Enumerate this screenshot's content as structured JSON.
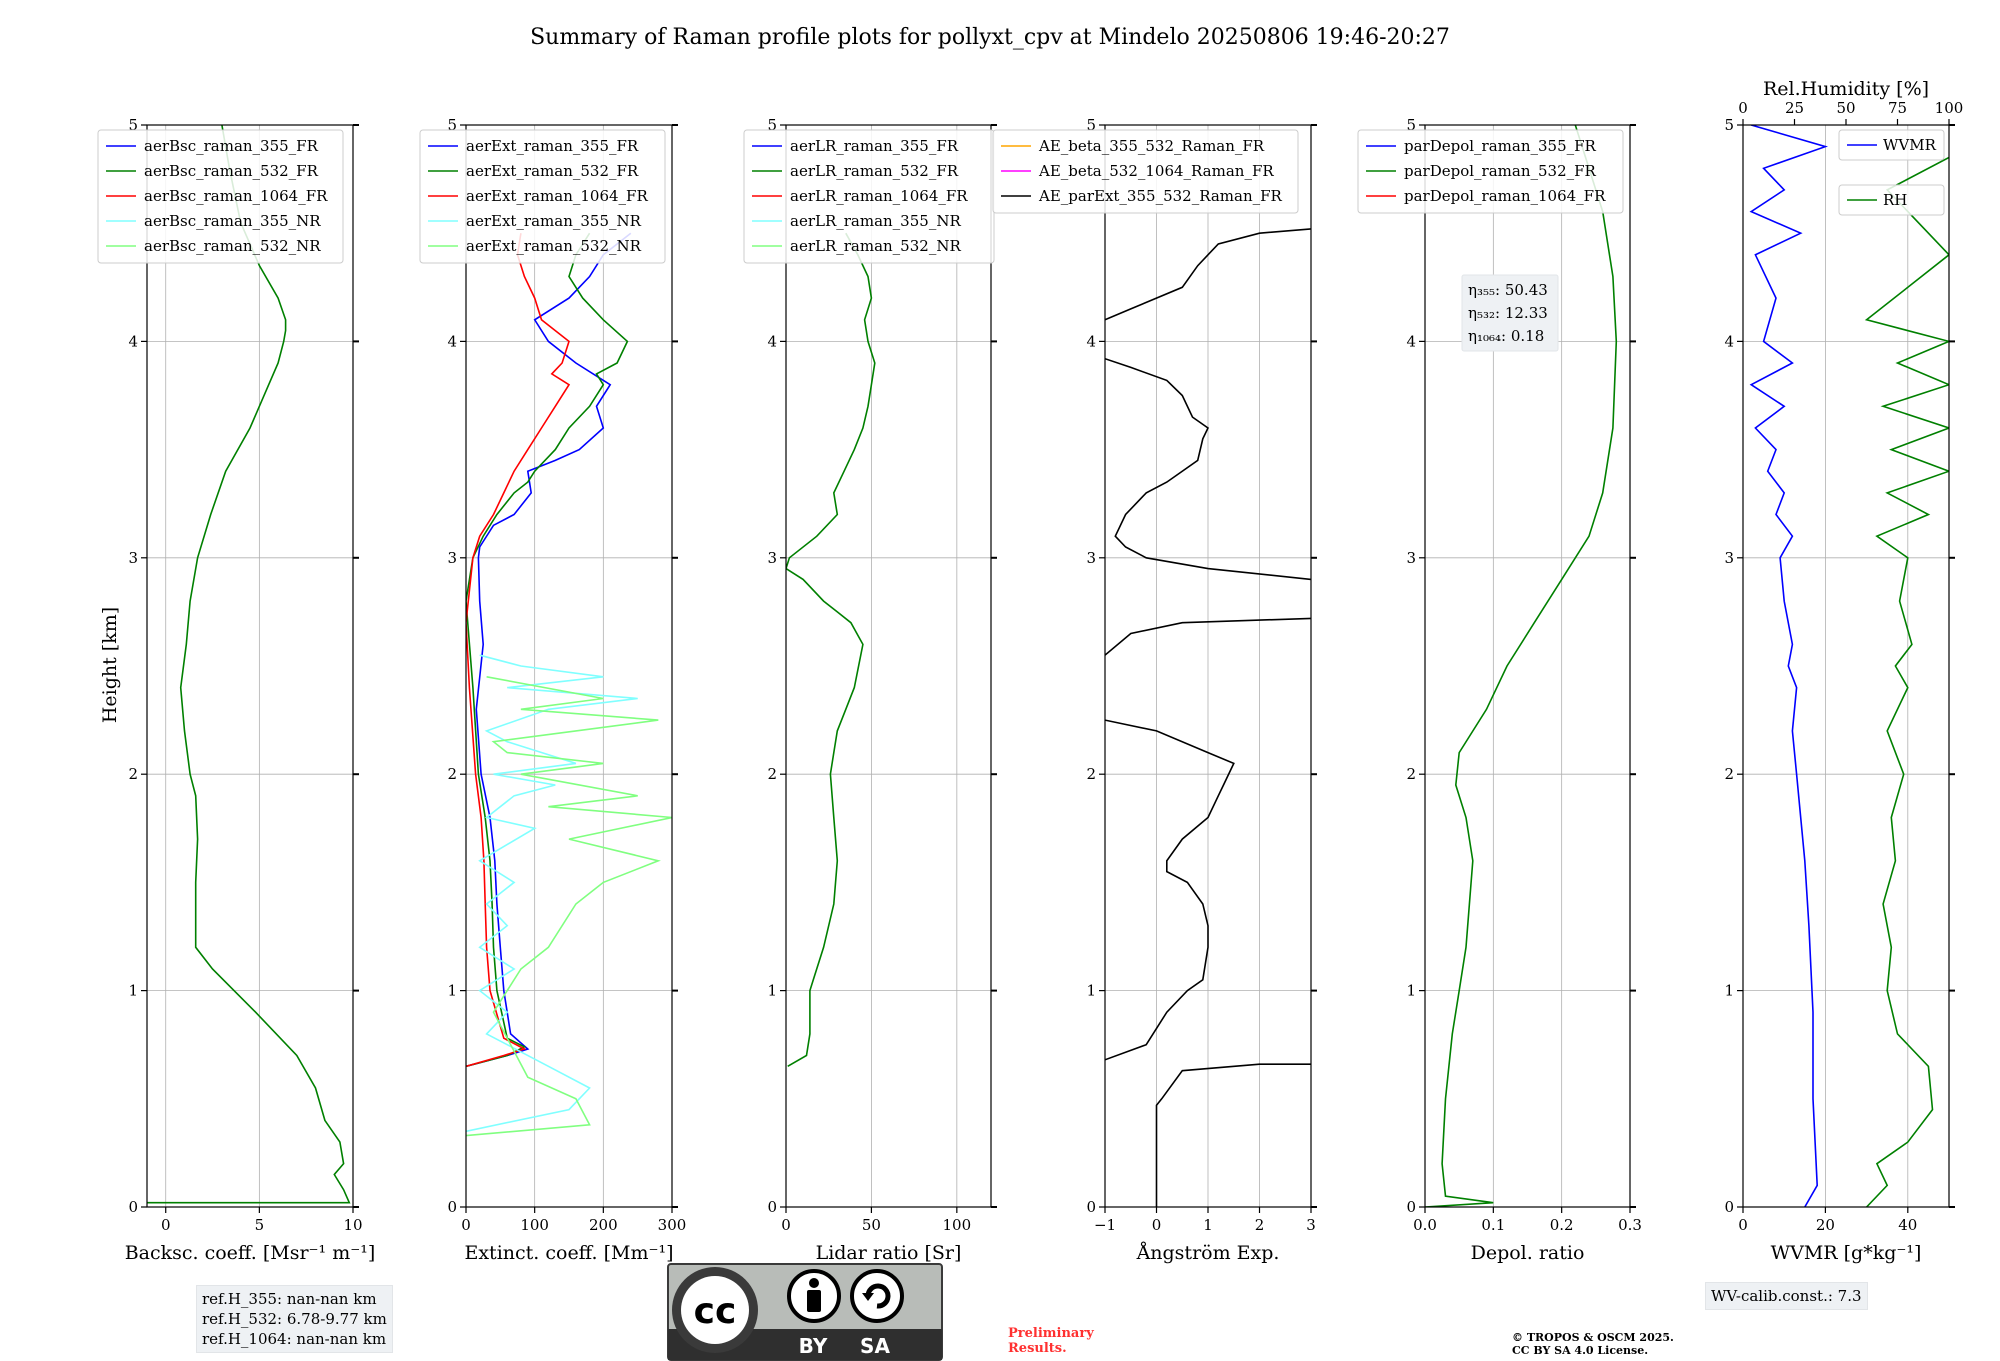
{
  "figure": {
    "title": "Summary of Raman profile plots for pollyxt_cpv at Mindelo 20250806 19:46-20:27",
    "ylabel": "Height [km]",
    "refbox": [
      "ref.H_355: nan-nan km",
      "ref.H_532: 6.78-9.77 km",
      "ref.H_1064: nan-nan km"
    ],
    "wv_calib": "WV-calib.const.: 7.3",
    "preliminary": [
      "Preliminary",
      "Results."
    ],
    "copyright": [
      "© TROPOS & OSCM 2025.",
      "CC BY SA 4.0 License."
    ],
    "license": {
      "by": "BY",
      "sa": "SA",
      "cc": "cc"
    },
    "colors": {
      "blue": "#0000ff",
      "green": "#008000",
      "red": "#ff0000",
      "cyan": "#80ffff",
      "lightgreen": "#80ff80",
      "orange": "#ffa500",
      "magenta": "#ff00ff",
      "black": "#000000",
      "grid": "#b0b0b0",
      "preliminary": "#ff3030"
    }
  },
  "chart_data": [
    {
      "type": "line",
      "xlabel": "Backsc. coeff. [Msr⁻¹ m⁻¹]",
      "xlim": [
        -1,
        10
      ],
      "xticks": [
        0,
        5,
        10
      ],
      "ylim": [
        0,
        5
      ],
      "yticks": [
        0,
        1,
        2,
        3,
        4,
        5
      ],
      "grid": true,
      "legend_location": "upper-left",
      "series": [
        {
          "name": "aerBsc_raman_355_FR",
          "color": "#0000ff",
          "x": [],
          "y": []
        },
        {
          "name": "aerBsc_raman_532_FR",
          "color": "#008000",
          "x": [
            -1,
            9.8,
            9.5,
            9.0,
            9.5,
            9.3,
            8.5,
            8.0,
            7.0,
            4.8,
            2.5,
            1.6,
            1.6,
            1.7,
            1.6,
            1.3,
            1.0,
            0.8,
            1.1,
            1.3,
            1.7,
            2.4,
            3.2,
            4.5,
            5.5,
            6.0,
            6.3,
            6.4,
            6.4,
            6.0,
            5.0,
            4.0,
            3.4,
            3.0
          ],
          "y": [
            0.02,
            0.02,
            0.08,
            0.15,
            0.2,
            0.3,
            0.4,
            0.55,
            0.7,
            0.9,
            1.1,
            1.2,
            1.5,
            1.7,
            1.9,
            2.0,
            2.2,
            2.4,
            2.6,
            2.8,
            3.0,
            3.2,
            3.4,
            3.6,
            3.8,
            3.9,
            4.0,
            4.05,
            4.1,
            4.2,
            4.35,
            4.55,
            4.8,
            5.0
          ]
        },
        {
          "name": "aerBsc_raman_1064_FR",
          "color": "#ff0000",
          "x": [],
          "y": []
        },
        {
          "name": "aerBsc_raman_355_NR",
          "color": "#80ffff",
          "x": [],
          "y": []
        },
        {
          "name": "aerBsc_raman_532_NR",
          "color": "#80ff80",
          "x": [],
          "y": []
        }
      ]
    },
    {
      "type": "line",
      "xlabel": "Extinct. coeff. [Mm⁻¹]",
      "xlim": [
        0,
        300
      ],
      "xticks": [
        0,
        100,
        200,
        300
      ],
      "ylim": [
        0,
        5
      ],
      "yticks": [
        0,
        1,
        2,
        3,
        4,
        5
      ],
      "grid": true,
      "legend_location": "upper-left",
      "series": [
        {
          "name": "aerExt_raman_355_FR",
          "color": "#0000ff",
          "x": [
            0,
            60,
            90,
            65,
            55,
            50,
            45,
            42,
            35,
            22,
            15,
            25,
            20,
            18,
            20,
            40,
            70,
            95,
            90,
            130,
            165,
            200,
            190,
            210,
            160,
            120,
            100,
            150,
            180,
            200,
            240
          ],
          "y": [
            0.65,
            0.7,
            0.73,
            0.8,
            1.0,
            1.2,
            1.4,
            1.6,
            1.8,
            2.0,
            2.3,
            2.6,
            2.8,
            3.0,
            3.05,
            3.15,
            3.2,
            3.3,
            3.4,
            3.45,
            3.5,
            3.6,
            3.7,
            3.8,
            3.9,
            4.0,
            4.1,
            4.2,
            4.3,
            4.4,
            4.5
          ]
        },
        {
          "name": "aerExt_raman_532_FR",
          "color": "#008000",
          "x": [
            0,
            60,
            85,
            60,
            45,
            40,
            38,
            35,
            28,
            18,
            10,
            0,
            10,
            25,
            45,
            70,
            90,
            100,
            130,
            150,
            180,
            200,
            190,
            220,
            235,
            200,
            170,
            150,
            160,
            180
          ],
          "y": [
            0.65,
            0.7,
            0.74,
            0.78,
            1.0,
            1.2,
            1.4,
            1.6,
            1.8,
            2.0,
            2.4,
            2.8,
            3.0,
            3.1,
            3.2,
            3.3,
            3.35,
            3.4,
            3.5,
            3.6,
            3.7,
            3.8,
            3.85,
            3.9,
            4.0,
            4.1,
            4.2,
            4.3,
            4.4,
            4.5
          ]
        },
        {
          "name": "aerExt_raman_1064_FR",
          "color": "#ff0000",
          "x": [
            0,
            55,
            85,
            55,
            35,
            30,
            28,
            26,
            22,
            14,
            5,
            0,
            10,
            20,
            40,
            55,
            70,
            90,
            110,
            130,
            150,
            125,
            140,
            150,
            130,
            110,
            100,
            85,
            75,
            80
          ],
          "y": [
            0.65,
            0.7,
            0.73,
            0.78,
            1.0,
            1.2,
            1.4,
            1.6,
            1.8,
            2.0,
            2.4,
            2.7,
            3.0,
            3.1,
            3.2,
            3.3,
            3.4,
            3.5,
            3.6,
            3.7,
            3.8,
            3.85,
            3.9,
            4.0,
            4.05,
            4.1,
            4.2,
            4.3,
            4.4,
            4.5
          ]
        },
        {
          "name": "aerExt_raman_355_NR",
          "color": "#80ffff",
          "x": [
            0,
            150,
            180,
            120,
            30,
            60,
            20,
            70,
            20,
            60,
            30,
            70,
            20,
            100,
            30,
            70,
            130,
            40,
            160,
            60,
            30,
            120,
            250,
            60,
            200,
            80,
            20
          ],
          "y": [
            0.35,
            0.45,
            0.55,
            0.65,
            0.8,
            0.9,
            1.0,
            1.1,
            1.2,
            1.3,
            1.4,
            1.5,
            1.6,
            1.75,
            1.8,
            1.9,
            1.95,
            2.0,
            2.05,
            2.15,
            2.2,
            2.3,
            2.35,
            2.4,
            2.45,
            2.5,
            2.55
          ]
        },
        {
          "name": "aerExt_raman_532_NR",
          "color": "#80ff80",
          "x": [
            0,
            180,
            160,
            90,
            40,
            80,
            120,
            160,
            200,
            280,
            150,
            300,
            120,
            250,
            80,
            200,
            60,
            40,
            160,
            280,
            80,
            200,
            30
          ],
          "y": [
            0.33,
            0.38,
            0.5,
            0.6,
            0.9,
            1.1,
            1.2,
            1.4,
            1.5,
            1.6,
            1.7,
            1.8,
            1.85,
            1.9,
            2.0,
            2.05,
            2.1,
            2.15,
            2.2,
            2.25,
            2.3,
            2.35,
            2.45
          ]
        }
      ]
    },
    {
      "type": "line",
      "xlabel": "Lidar ratio [Sr]",
      "xlim": [
        0,
        120
      ],
      "xticks": [
        0,
        50,
        100
      ],
      "ylim": [
        0,
        5
      ],
      "yticks": [
        0,
        1,
        2,
        3,
        4,
        5
      ],
      "grid": true,
      "legend_location": "upper-left",
      "series": [
        {
          "name": "aerLR_raman_355_FR",
          "color": "#0000ff",
          "x": [],
          "y": []
        },
        {
          "name": "aerLR_raman_532_FR",
          "color": "#008000",
          "x": [
            1,
            12,
            14,
            14,
            16,
            22,
            28,
            30,
            28,
            26,
            28,
            30,
            35,
            40,
            45,
            38,
            30,
            22,
            10,
            0,
            2,
            18,
            30,
            28,
            34,
            40,
            45,
            48,
            50,
            52,
            48,
            46,
            50,
            48,
            42,
            35
          ],
          "y": [
            0.65,
            0.7,
            0.8,
            1.0,
            1.05,
            1.2,
            1.4,
            1.6,
            1.8,
            2.0,
            2.1,
            2.2,
            2.3,
            2.4,
            2.6,
            2.7,
            2.75,
            2.8,
            2.9,
            2.95,
            3.0,
            3.1,
            3.2,
            3.3,
            3.4,
            3.5,
            3.6,
            3.7,
            3.8,
            3.9,
            4.0,
            4.1,
            4.2,
            4.3,
            4.4,
            4.5
          ]
        },
        {
          "name": "aerLR_raman_1064_FR",
          "color": "#ff0000",
          "x": [],
          "y": []
        },
        {
          "name": "aerLR_raman_355_NR",
          "color": "#80ffff",
          "x": [],
          "y": []
        },
        {
          "name": "aerLR_raman_532_NR",
          "color": "#80ff80",
          "x": [],
          "y": []
        }
      ]
    },
    {
      "type": "line",
      "xlabel": "Ångström Exp.",
      "xlim": [
        -1,
        3
      ],
      "xticks": [
        -1,
        0,
        1,
        2,
        3
      ],
      "ylim": [
        0,
        5
      ],
      "yticks": [
        0,
        1,
        2,
        3,
        4,
        5
      ],
      "grid": true,
      "legend_location": "upper-left",
      "series": [
        {
          "name": "AE_beta_355_532_Raman_FR",
          "color": "#ffa500",
          "x": [],
          "y": []
        },
        {
          "name": "AE_beta_532_1064_Raman_FR",
          "color": "#ff00ff",
          "x": [],
          "y": []
        },
        {
          "name": "AE_parExt_355_532_Raman_FR",
          "color": "#000000",
          "x": [
            0,
            0,
            0.1,
            0.5,
            2.0,
            3.0,
            null,
            -1.0,
            -0.2,
            0.2,
            0.6,
            0.9,
            1.0,
            1.0,
            0.9,
            0.6,
            0.2,
            0.2,
            0.5,
            1.0,
            1.2,
            1.3,
            1.5,
            1.0,
            0.0,
            -1.0,
            null,
            -1.0,
            -0.5,
            0.5,
            3.0,
            null,
            3.0,
            1.0,
            -0.2,
            -0.6,
            -0.8,
            -0.6,
            -0.2,
            0.2,
            0.8,
            0.9,
            1.0,
            0.7,
            0.5,
            0.2,
            -0.5,
            -1.0,
            null,
            -1.0,
            -0.5,
            0.5,
            0.8,
            1.0,
            1.2,
            2.0,
            3.0
          ],
          "y": [
            0,
            0.47,
            0.5,
            0.63,
            0.66,
            0.66,
            null,
            0.68,
            0.75,
            0.9,
            1.0,
            1.05,
            1.2,
            1.3,
            1.4,
            1.5,
            1.55,
            1.6,
            1.7,
            1.8,
            1.9,
            1.95,
            2.05,
            2.1,
            2.2,
            2.25,
            null,
            2.55,
            2.65,
            2.7,
            2.72,
            null,
            2.9,
            2.95,
            3.0,
            3.05,
            3.1,
            3.2,
            3.3,
            3.35,
            3.45,
            3.55,
            3.6,
            3.65,
            3.75,
            3.82,
            3.88,
            3.92,
            null,
            4.1,
            4.15,
            4.25,
            4.35,
            4.4,
            4.45,
            4.5,
            4.52
          ]
        }
      ]
    },
    {
      "type": "line",
      "xlabel": "Depol. ratio",
      "xlim": [
        0,
        0.3
      ],
      "xticks": [
        0.0,
        0.1,
        0.2,
        0.3
      ],
      "ylim": [
        0,
        5
      ],
      "yticks": [
        0,
        1,
        2,
        3,
        4,
        5
      ],
      "grid": true,
      "legend_location": "upper-left",
      "annotation": [
        "η₃₅₅: 50.43",
        "η₅₃₂: 12.33",
        "η₁₀₆₄: 0.18"
      ],
      "series": [
        {
          "name": "parDepol_raman_355_FR",
          "color": "#0000ff",
          "x": [],
          "y": []
        },
        {
          "name": "parDepol_raman_532_FR",
          "color": "#008000",
          "x": [
            0,
            0.1,
            0.03,
            0.025,
            0.03,
            0.04,
            0.05,
            0.06,
            0.065,
            0.07,
            0.06,
            0.045,
            0.05,
            0.09,
            0.12,
            0.16,
            0.2,
            0.24,
            0.26,
            0.275,
            0.28,
            0.275,
            0.26,
            0.24,
            0.22
          ],
          "y": [
            0,
            0.02,
            0.05,
            0.2,
            0.5,
            0.8,
            1.0,
            1.2,
            1.4,
            1.6,
            1.8,
            1.95,
            2.1,
            2.3,
            2.5,
            2.7,
            2.9,
            3.1,
            3.3,
            3.6,
            4.0,
            4.3,
            4.6,
            4.8,
            5.0
          ]
        },
        {
          "name": "parDepol_raman_1064_FR",
          "color": "#ff0000",
          "x": [],
          "y": []
        }
      ]
    },
    {
      "type": "line",
      "xlabel": "WVMR [g*kg⁻¹]",
      "xlim": [
        0,
        50
      ],
      "xticks": [
        0,
        20,
        40
      ],
      "x2label": "Rel.Humidity [%]",
      "x2lim": [
        0,
        100
      ],
      "x2ticks": [
        0,
        25,
        50,
        75,
        100
      ],
      "ylim": [
        0,
        5
      ],
      "yticks": [
        0,
        1,
        2,
        3,
        4,
        5
      ],
      "grid": true,
      "legend_location": "upper-right",
      "series": [
        {
          "name": "WVMR",
          "color": "#0000ff",
          "x": [
            15,
            18,
            17,
            17,
            16,
            15,
            14,
            13,
            12,
            13,
            11,
            12,
            10,
            9,
            12,
            8,
            10,
            6,
            8,
            3,
            10,
            2,
            12,
            5,
            8,
            3,
            14,
            2,
            10,
            5,
            20,
            2
          ],
          "y": [
            0,
            0.1,
            0.5,
            0.9,
            1.3,
            1.6,
            1.8,
            2.0,
            2.2,
            2.4,
            2.5,
            2.6,
            2.8,
            3.0,
            3.1,
            3.2,
            3.3,
            3.4,
            3.5,
            3.6,
            3.7,
            3.8,
            3.9,
            4.0,
            4.2,
            4.4,
            4.5,
            4.6,
            4.7,
            4.8,
            4.9,
            5.0
          ]
        },
        {
          "name": "RH",
          "color": "#008000",
          "axis": "x2",
          "x": [
            60,
            70,
            65,
            80,
            92,
            90,
            75,
            70,
            72,
            68,
            74,
            72,
            78,
            70,
            80,
            74,
            82,
            76,
            80,
            65,
            90,
            70,
            100,
            72,
            100,
            68,
            100,
            75,
            100,
            60,
            100,
            70,
            100
          ],
          "y": [
            0,
            0.1,
            0.2,
            0.3,
            0.45,
            0.65,
            0.8,
            1.0,
            1.2,
            1.4,
            1.6,
            1.8,
            2.0,
            2.2,
            2.4,
            2.5,
            2.6,
            2.8,
            3.0,
            3.1,
            3.2,
            3.3,
            3.4,
            3.5,
            3.6,
            3.7,
            3.8,
            3.9,
            4.0,
            4.1,
            4.4,
            4.7,
            4.85
          ]
        }
      ]
    }
  ]
}
